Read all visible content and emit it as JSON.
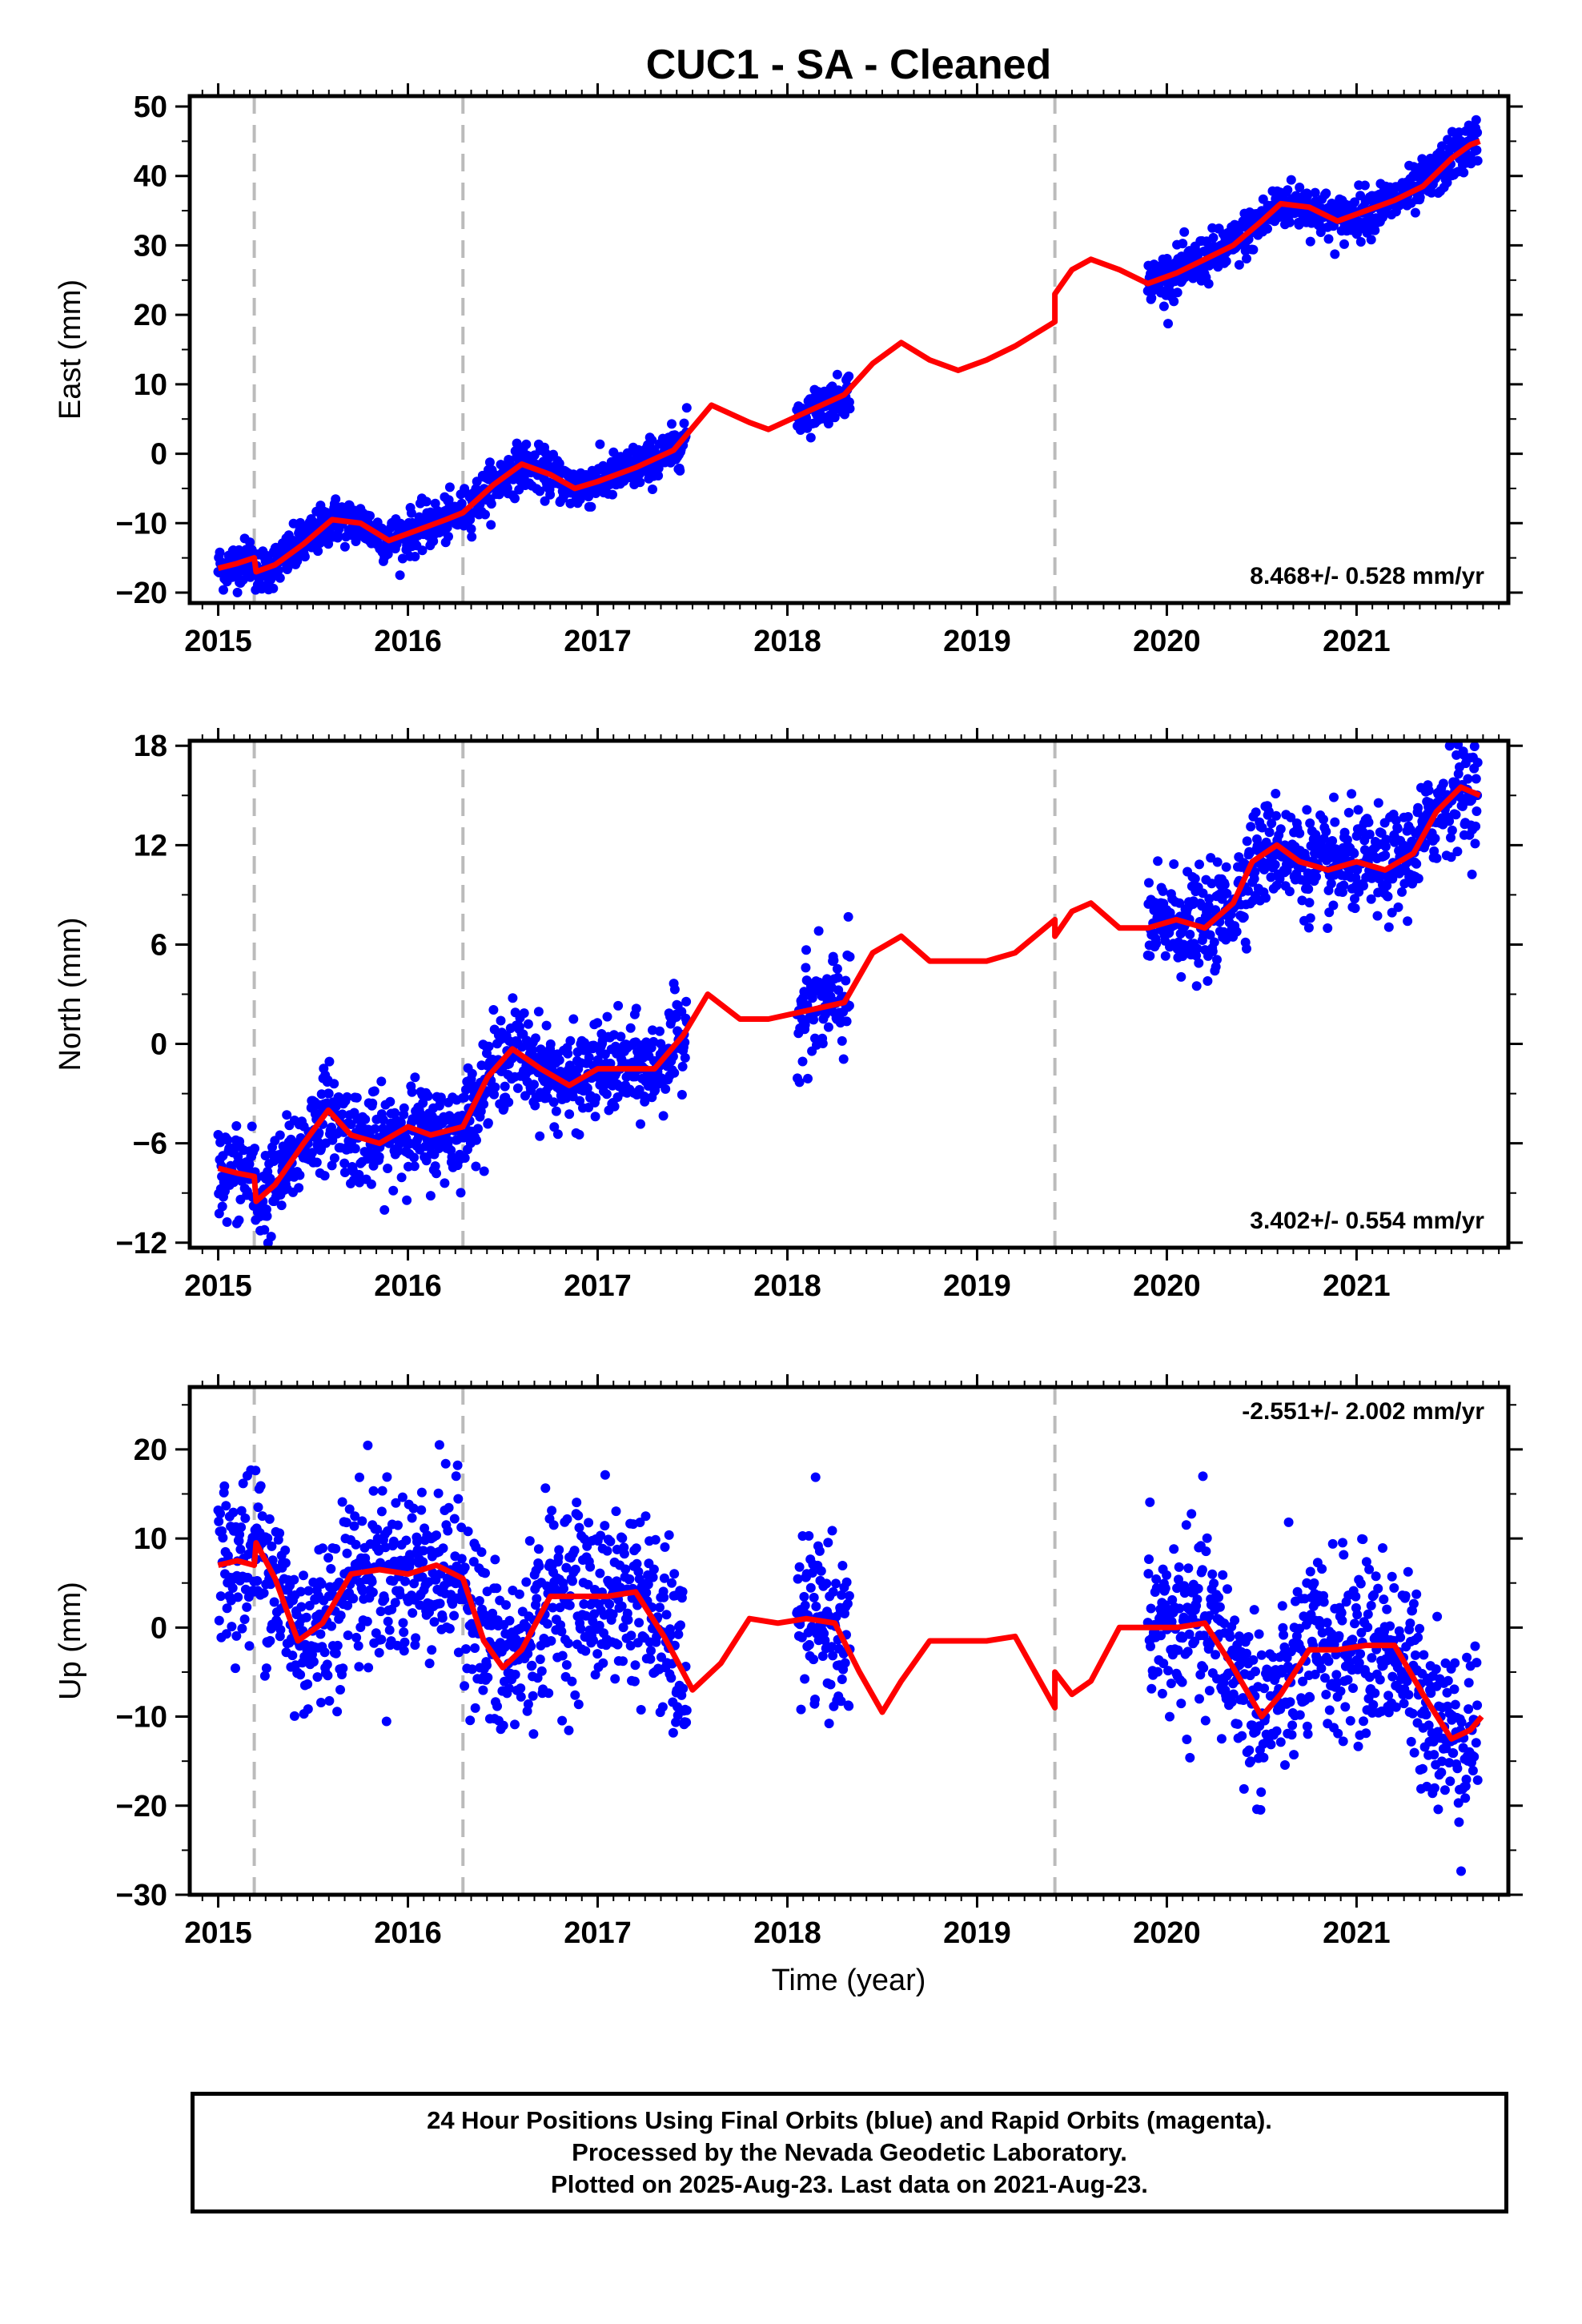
{
  "title": "CUC1  - SA - Cleaned",
  "footer": {
    "line1": "24 Hour Positions Using Final Orbits (blue) and Rapid Orbits (magenta).",
    "line2": "Processed by the Nevada Geodetic Laboratory.",
    "line3": "Plotted on 2025-Aug-23. Last data on 2021-Aug-23."
  },
  "colors": {
    "points": "#0000ff",
    "model": "#ff0000",
    "breaks": "#bbbbbb"
  },
  "chart_data": [
    {
      "type": "scatter",
      "ylabel": "East (mm)",
      "xlabel": "",
      "xlim": [
        2014.85,
        2021.8
      ],
      "ylim": [
        -21.5,
        51.5
      ],
      "xticks": [
        2015,
        2016,
        2017,
        2018,
        2019,
        2020,
        2021
      ],
      "yticks": [
        -20,
        -10,
        0,
        10,
        20,
        30,
        40,
        50
      ],
      "breaks": [
        2015.19,
        2016.29,
        2019.41
      ],
      "rate_label": "8.468+/- 0.528 mm/yr",
      "rate_position": "bottom-right",
      "data_segments": [
        {
          "start": 2015.0,
          "end": 2017.47,
          "spread": 1.6
        },
        {
          "start": 2018.05,
          "end": 2018.33,
          "spread": 1.4
        },
        {
          "start": 2019.9,
          "end": 2021.64,
          "spread": 1.7
        }
      ],
      "model": [
        [
          2015.0,
          -16.5
        ],
        [
          2015.1,
          -15.8
        ],
        [
          2015.19,
          -15.0
        ],
        [
          2015.2,
          -17.0
        ],
        [
          2015.3,
          -16.0
        ],
        [
          2015.45,
          -13.0
        ],
        [
          2015.6,
          -9.5
        ],
        [
          2015.75,
          -10.0
        ],
        [
          2015.9,
          -12.5
        ],
        [
          2016.05,
          -11.0
        ],
        [
          2016.2,
          -9.5
        ],
        [
          2016.29,
          -8.5
        ],
        [
          2016.45,
          -4.5
        ],
        [
          2016.6,
          -1.5
        ],
        [
          2016.75,
          -3.0
        ],
        [
          2016.88,
          -5.0
        ],
        [
          2017.0,
          -4.0
        ],
        [
          2017.2,
          -2.0
        ],
        [
          2017.4,
          0.5
        ],
        [
          2017.6,
          7.0
        ],
        [
          2017.8,
          4.5
        ],
        [
          2017.9,
          3.5
        ],
        [
          2018.1,
          6.0
        ],
        [
          2018.3,
          8.5
        ],
        [
          2018.45,
          13.0
        ],
        [
          2018.6,
          16.0
        ],
        [
          2018.75,
          13.5
        ],
        [
          2018.9,
          12.0
        ],
        [
          2019.05,
          13.5
        ],
        [
          2019.2,
          15.5
        ],
        [
          2019.41,
          19.0
        ],
        [
          2019.41,
          23.0
        ],
        [
          2019.5,
          26.5
        ],
        [
          2019.6,
          28.0
        ],
        [
          2019.75,
          26.5
        ],
        [
          2019.9,
          24.5
        ],
        [
          2020.05,
          26.0
        ],
        [
          2020.2,
          28.0
        ],
        [
          2020.35,
          30.0
        ],
        [
          2020.5,
          33.5
        ],
        [
          2020.6,
          36.0
        ],
        [
          2020.75,
          35.5
        ],
        [
          2020.9,
          33.5
        ],
        [
          2021.05,
          35.0
        ],
        [
          2021.2,
          36.5
        ],
        [
          2021.35,
          38.5
        ],
        [
          2021.5,
          42.5
        ],
        [
          2021.6,
          44.5
        ],
        [
          2021.65,
          45.0
        ]
      ]
    },
    {
      "type": "scatter",
      "ylabel": "North (mm)",
      "xlabel": "",
      "xlim": [
        2014.85,
        2021.8
      ],
      "ylim": [
        -12.3,
        18.3
      ],
      "xticks": [
        2015,
        2016,
        2017,
        2018,
        2019,
        2020,
        2021
      ],
      "yticks": [
        -12,
        -6,
        0,
        6,
        12,
        18
      ],
      "breaks": [
        2015.19,
        2016.29,
        2019.41
      ],
      "rate_label": "3.402+/- 0.554 mm/yr",
      "rate_position": "bottom-right",
      "data_segments": [
        {
          "start": 2015.0,
          "end": 2017.47,
          "spread": 1.4
        },
        {
          "start": 2018.05,
          "end": 2018.33,
          "spread": 1.6
        },
        {
          "start": 2019.9,
          "end": 2021.64,
          "spread": 1.5
        }
      ],
      "model": [
        [
          2015.0,
          -7.5
        ],
        [
          2015.1,
          -7.8
        ],
        [
          2015.19,
          -8.0
        ],
        [
          2015.2,
          -9.5
        ],
        [
          2015.3,
          -8.5
        ],
        [
          2015.45,
          -6.0
        ],
        [
          2015.58,
          -4.0
        ],
        [
          2015.7,
          -5.5
        ],
        [
          2015.85,
          -6.0
        ],
        [
          2016.0,
          -5.0
        ],
        [
          2016.12,
          -5.5
        ],
        [
          2016.29,
          -5.0
        ],
        [
          2016.42,
          -2.0
        ],
        [
          2016.55,
          -0.3
        ],
        [
          2016.7,
          -1.5
        ],
        [
          2016.85,
          -2.5
        ],
        [
          2017.0,
          -1.5
        ],
        [
          2017.15,
          -1.5
        ],
        [
          2017.3,
          -1.5
        ],
        [
          2017.45,
          0.5
        ],
        [
          2017.58,
          3.0
        ],
        [
          2017.75,
          1.5
        ],
        [
          2017.9,
          1.5
        ],
        [
          2018.1,
          2.0
        ],
        [
          2018.3,
          2.5
        ],
        [
          2018.45,
          5.5
        ],
        [
          2018.6,
          6.5
        ],
        [
          2018.75,
          5.0
        ],
        [
          2018.9,
          5.0
        ],
        [
          2019.05,
          5.0
        ],
        [
          2019.2,
          5.5
        ],
        [
          2019.41,
          7.5
        ],
        [
          2019.41,
          6.5
        ],
        [
          2019.5,
          8.0
        ],
        [
          2019.6,
          8.5
        ],
        [
          2019.75,
          7.0
        ],
        [
          2019.9,
          7.0
        ],
        [
          2020.05,
          7.5
        ],
        [
          2020.2,
          7.0
        ],
        [
          2020.35,
          8.5
        ],
        [
          2020.45,
          11.0
        ],
        [
          2020.58,
          12.0
        ],
        [
          2020.7,
          11.0
        ],
        [
          2020.85,
          10.5
        ],
        [
          2021.0,
          11.0
        ],
        [
          2021.15,
          10.5
        ],
        [
          2021.3,
          11.5
        ],
        [
          2021.42,
          14.0
        ],
        [
          2021.55,
          15.5
        ],
        [
          2021.65,
          15.0
        ]
      ]
    },
    {
      "type": "scatter",
      "ylabel": "Up (mm)",
      "xlabel": "Time (year)",
      "xlim": [
        2014.85,
        2021.8
      ],
      "ylim": [
        -30,
        27
      ],
      "xticks": [
        2015,
        2016,
        2017,
        2018,
        2019,
        2020,
        2021
      ],
      "yticks": [
        -30,
        -20,
        -10,
        0,
        10,
        20
      ],
      "breaks": [
        2015.19,
        2016.29,
        2019.41
      ],
      "rate_label": "-2.551+/- 2.002 mm/yr",
      "rate_position": "top-right",
      "data_segments": [
        {
          "start": 2015.0,
          "end": 2017.47,
          "spread": 5.0
        },
        {
          "start": 2018.05,
          "end": 2018.33,
          "spread": 4.5
        },
        {
          "start": 2019.9,
          "end": 2021.64,
          "spread": 5.0
        }
      ],
      "model": [
        [
          2015.0,
          7.0
        ],
        [
          2015.1,
          7.5
        ],
        [
          2015.19,
          7.0
        ],
        [
          2015.2,
          9.5
        ],
        [
          2015.3,
          5.5
        ],
        [
          2015.42,
          -1.5
        ],
        [
          2015.55,
          0.5
        ],
        [
          2015.7,
          6.0
        ],
        [
          2015.85,
          6.5
        ],
        [
          2016.0,
          6.0
        ],
        [
          2016.15,
          7.0
        ],
        [
          2016.29,
          5.5
        ],
        [
          2016.4,
          -1.5
        ],
        [
          2016.5,
          -4.5
        ],
        [
          2016.6,
          -2.5
        ],
        [
          2016.75,
          3.5
        ],
        [
          2016.9,
          3.5
        ],
        [
          2017.05,
          3.5
        ],
        [
          2017.2,
          4.0
        ],
        [
          2017.35,
          -1.0
        ],
        [
          2017.5,
          -7.0
        ],
        [
          2017.65,
          -4.0
        ],
        [
          2017.8,
          1.0
        ],
        [
          2017.95,
          0.5
        ],
        [
          2018.1,
          1.0
        ],
        [
          2018.25,
          0.5
        ],
        [
          2018.38,
          -5.0
        ],
        [
          2018.5,
          -9.5
        ],
        [
          2018.6,
          -6.0
        ],
        [
          2018.75,
          -1.5
        ],
        [
          2018.9,
          -1.5
        ],
        [
          2019.05,
          -1.5
        ],
        [
          2019.2,
          -1.0
        ],
        [
          2019.41,
          -9.0
        ],
        [
          2019.41,
          -5.0
        ],
        [
          2019.5,
          -7.5
        ],
        [
          2019.6,
          -6.0
        ],
        [
          2019.75,
          0.0
        ],
        [
          2019.9,
          0.0
        ],
        [
          2020.05,
          0.0
        ],
        [
          2020.2,
          0.5
        ],
        [
          2020.35,
          -4.5
        ],
        [
          2020.5,
          -10.0
        ],
        [
          2020.6,
          -7.5
        ],
        [
          2020.75,
          -2.5
        ],
        [
          2020.9,
          -2.5
        ],
        [
          2021.05,
          -2.0
        ],
        [
          2021.2,
          -2.0
        ],
        [
          2021.35,
          -7.5
        ],
        [
          2021.5,
          -12.5
        ],
        [
          2021.6,
          -11.5
        ],
        [
          2021.66,
          -10.0
        ]
      ]
    }
  ]
}
